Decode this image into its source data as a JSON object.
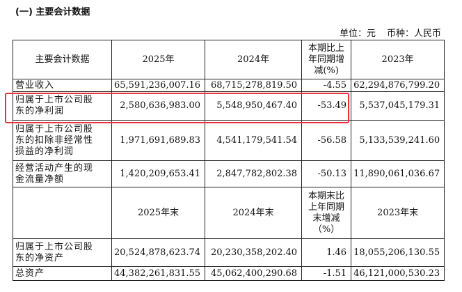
{
  "section_title": "(一) 主要会计数据",
  "unit_line": {
    "unit": "单位：元",
    "currency": "币种：人民币"
  },
  "header1": {
    "c0": "主要会计数据",
    "c1": "2025年",
    "c2": "2024年",
    "c3": [
      "本期比上",
      "年同期增",
      "减(%)"
    ],
    "c4": "2023年"
  },
  "rows1": [
    {
      "label": [
        "营业收入"
      ],
      "y2025": "65,591,236,007.16",
      "y2024": "68,715,278,819.50",
      "chg": "-4.55",
      "y2023": "62,294,876,799.20"
    },
    {
      "label": [
        "归属于上市公司股",
        "东的净利润"
      ],
      "y2025": "2,580,636,983.00",
      "y2024": "5,548,950,467.40",
      "chg": "-53.49",
      "y2023": "5,537,045,179.31"
    },
    {
      "label": [
        "归属于上市公司股",
        "东的扣除非经常性",
        "损益的净利润"
      ],
      "y2025": "1,971,691,689.83",
      "y2024": "4,541,179,541.54",
      "chg": "-56.58",
      "y2023": "5,133,539,241.60"
    },
    {
      "label": [
        "经营活动产生的现",
        "金流量净额"
      ],
      "y2025": "1,420,209,653.41",
      "y2024": "2,847,782,802.38",
      "chg": "-50.13",
      "y2023": "11,890,061,036.67"
    }
  ],
  "header2": {
    "c1": "2025年末",
    "c2": "2024年末",
    "c3": [
      "本期末比",
      "上年同期",
      "末增减",
      "（%）"
    ],
    "c4": "2023年末"
  },
  "rows2": [
    {
      "label": [
        "归属于上市公司股",
        "东的净资产"
      ],
      "y2025": "20,524,878,623.74",
      "y2024": "20,230,358,202.40",
      "chg": "1.46",
      "y2023": "18,055,206,130.55"
    },
    {
      "label": [
        "总资产"
      ],
      "y2025": "44,382,261,831.55",
      "y2024": "45,062,400,290.68",
      "chg": "-1.51",
      "y2023": "46,121,000,530.23"
    }
  ],
  "highlight_color": "#e8343f"
}
